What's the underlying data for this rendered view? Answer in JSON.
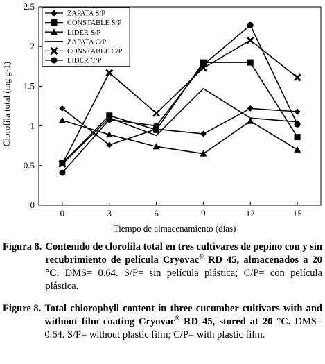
{
  "chart_data": {
    "type": "line",
    "xlabel": "Tiempo de almacenamiento (días)",
    "ylabel": "Clorofila  total (mg g-1)",
    "x": [
      0,
      3,
      6,
      9,
      12,
      15
    ],
    "xlim": [
      -1.5,
      16.5
    ],
    "ylim": [
      0,
      2.5
    ],
    "yticks": [
      0,
      0.5,
      1,
      1.5,
      2,
      2.5
    ],
    "ytick_labels": [
      "0",
      "0.5",
      "1",
      "1.5",
      "2",
      "2.5"
    ],
    "xtick_labels": [
      "0",
      "3",
      "6",
      "9",
      "12",
      "15"
    ],
    "legend_position": "top-left",
    "grid": false,
    "series": [
      {
        "name": "ZAPATA S/P",
        "marker": "diamond",
        "values": [
          1.22,
          0.76,
          0.96,
          0.9,
          1.22,
          1.18
        ]
      },
      {
        "name": "CONSTABLE S/P",
        "marker": "square",
        "values": [
          0.53,
          1.13,
          0.95,
          1.8,
          1.8,
          0.86
        ]
      },
      {
        "name": "LIDER S/P",
        "marker": "triangle",
        "values": [
          1.07,
          0.89,
          0.74,
          0.65,
          1.06,
          0.7
        ]
      },
      {
        "name": "ZAPATA C/P",
        "marker": "none",
        "values": [
          0.52,
          1.1,
          0.88,
          1.47,
          1.1,
          1.05
        ]
      },
      {
        "name": "CONSTABLE C/P",
        "marker": "x",
        "values": [
          0.52,
          1.67,
          1.16,
          1.73,
          2.08,
          1.61
        ]
      },
      {
        "name": "LIDER C/P",
        "marker": "circle",
        "values": [
          0.41,
          1.08,
          1.0,
          1.77,
          2.27,
          1.02
        ]
      }
    ]
  },
  "caption_es": {
    "label": "Figura 8.",
    "bold_text": "Contenido de clorofila total en tres cultivares de pepino con y sin recubrimiento de película Cryovac",
    "sup": "®",
    "bold_text2": " RD 45, almacenados a 20 °C.",
    "normal_text": " DMS= 0.64. S/P= sin película plástica; C/P= con película plástica."
  },
  "caption_en": {
    "label": "Figure 8.",
    "bold_text": "Total chlorophyll content in three cucumber cultivars with and without film coating Cryovac",
    "sup": "®",
    "bold_text2": " RD 45, stored at 20 °C.",
    "normal_text": " DMS= 0.64. S/P= without plastic film; C/P= with plastic film."
  }
}
